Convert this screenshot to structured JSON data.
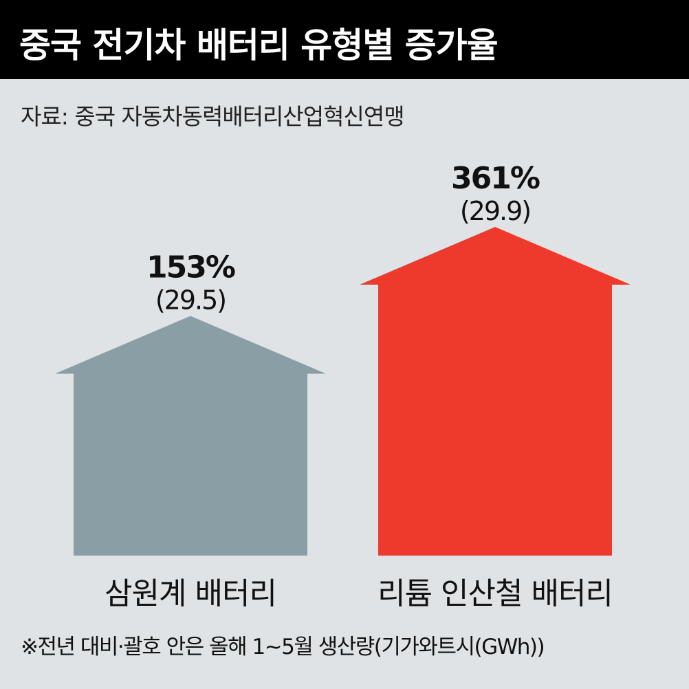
{
  "title": "중국 전기차 배터리 유형별 증가율",
  "source": "자료: 중국 자동차동력배터리산업혁신연맹",
  "footnote": "※전년 대비·괄호 안은 올해 1~5월 생산량(기가와트시(GWh))",
  "colors": {
    "background": "#dfe3e6",
    "title_bar": "#000000",
    "ternary": "#8a9ea6",
    "lfp": "#ee3a2c"
  },
  "chart_data": {
    "type": "bar",
    "mark_shape": "house-arrow",
    "categories": [
      "삼원계 배터리",
      "리튬 인산철 배터리"
    ],
    "values": [
      153,
      361
    ],
    "value_labels": [
      "153%",
      "361%"
    ],
    "production_gwh": [
      29.5,
      29.9
    ],
    "production_labels": [
      "(29.5)",
      "(29.9)"
    ],
    "ylim": [
      0,
      361
    ],
    "grid": false,
    "legend": "none"
  }
}
